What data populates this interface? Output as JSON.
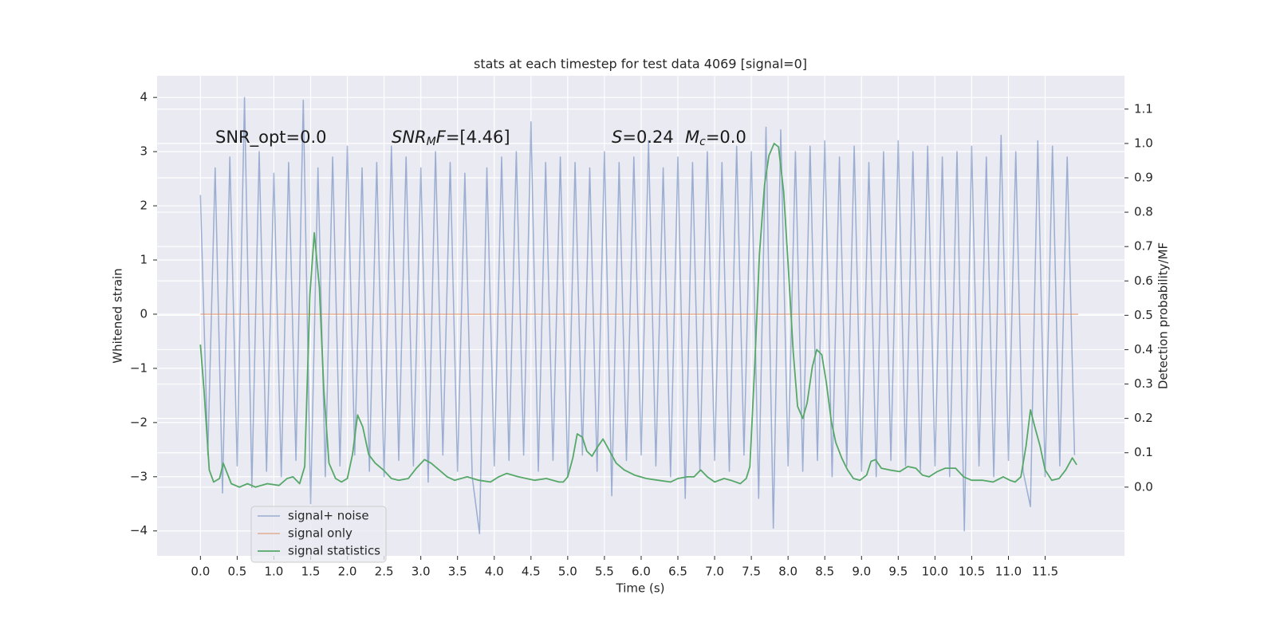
{
  "chart_data": {
    "type": "line",
    "title": "stats at each timestep for test data 4069 [signal=0]",
    "xlabel": "Time (s)",
    "ylabel": "Whitened strain",
    "y2label": "Detection probability/MF",
    "annotations": [
      [
        {
          "text": "SNR_opt=0.0",
          "style": "normal"
        }
      ],
      [
        {
          "text": "SNR",
          "style": "italic"
        },
        {
          "text": "M",
          "style": "sub"
        },
        {
          "text": "F",
          "style": "italic"
        },
        {
          "text": "=[4.46]",
          "style": "normal"
        }
      ],
      [
        {
          "text": "S",
          "style": "italic"
        },
        {
          "text": "=0.24",
          "style": "normal"
        }
      ],
      [
        {
          "text": "M",
          "style": "italic"
        },
        {
          "text": "c",
          "style": "sub"
        },
        {
          "text": "=0.0",
          "style": "normal"
        }
      ]
    ],
    "xlim": [
      -0.59,
      12.58
    ],
    "ylim": [
      -4.46,
      4.4
    ],
    "y2lim": [
      -0.2,
      1.197
    ],
    "xticks": [
      {
        "value": 0,
        "label": "0.0"
      },
      0.5,
      {
        "value": 1,
        "label": "1.0"
      },
      1.5,
      {
        "value": 2,
        "label": "2.0"
      },
      2.5,
      {
        "value": 3,
        "label": "3.0"
      },
      3.5,
      {
        "value": 4,
        "label": "4.0"
      },
      4.5,
      {
        "value": 5,
        "label": "5.0"
      },
      5.5,
      {
        "value": 6,
        "label": "6.0"
      },
      6.5,
      {
        "value": 7,
        "label": "7.0"
      },
      7.5,
      {
        "value": 8,
        "label": "8.0"
      },
      8.5,
      {
        "value": 9,
        "label": "9.0"
      },
      9.5,
      {
        "value": 10,
        "label": "10.0"
      },
      10.5,
      {
        "value": 11,
        "label": "11.0"
      },
      11.5
    ],
    "yticks": [
      {
        "value": -4,
        "label": "−4"
      },
      {
        "value": -3,
        "label": "−3"
      },
      {
        "value": -2,
        "label": "−2"
      },
      {
        "value": -1,
        "label": "−1"
      },
      0,
      1,
      2,
      3,
      4
    ],
    "y2ticks": [
      {
        "value": 0,
        "label": "0.0"
      },
      0.1,
      0.2,
      0.3,
      0.4,
      0.5,
      0.6,
      0.7,
      0.8,
      0.9,
      {
        "value": 1,
        "label": "1.0"
      },
      1.1
    ],
    "grid": true,
    "legend": "lower left",
    "series": [
      {
        "name": "signal+ noise",
        "color": "#4c72b0",
        "axis": "y",
        "x": [
          0,
          0.1,
          0.2,
          0.3,
          0.4,
          0.5,
          0.6,
          0.7,
          0.8,
          0.9,
          1,
          1.1,
          1.2,
          1.3,
          1.4,
          1.5,
          1.6,
          1.7,
          1.8,
          1.9,
          2,
          2.1,
          2.2,
          2.3,
          2.4,
          2.5,
          2.6,
          2.7,
          2.8,
          2.9,
          3,
          3.1,
          3.2,
          3.3,
          3.4,
          3.5,
          3.6,
          3.7,
          3.8,
          3.9,
          4,
          4.1,
          4.2,
          4.3,
          4.4,
          4.5,
          4.6,
          4.7,
          4.8,
          4.9,
          5,
          5.1,
          5.2,
          5.3,
          5.4,
          5.5,
          5.6,
          5.7,
          5.8,
          5.9,
          6,
          6.1,
          6.2,
          6.3,
          6.4,
          6.5,
          6.6,
          6.7,
          6.8,
          6.9,
          7,
          7.1,
          7.2,
          7.3,
          7.4,
          7.5,
          7.6,
          7.7,
          7.8,
          7.9,
          8,
          8.1,
          8.2,
          8.3,
          8.4,
          8.5,
          8.6,
          8.7,
          8.8,
          8.9,
          9,
          9.1,
          9.2,
          9.3,
          9.4,
          9.5,
          9.6,
          9.7,
          9.8,
          9.9,
          10,
          10.1,
          10.2,
          10.3,
          10.4,
          10.5,
          10.6,
          10.7,
          10.8,
          10.9,
          11,
          11.1,
          11.2,
          11.3,
          11.4,
          11.5,
          11.6,
          11.7,
          11.8,
          11.9
        ],
        "values": [
          2.2,
          -2.6,
          2.7,
          -3.3,
          2.9,
          -2.8,
          4.0,
          -3.2,
          3.0,
          -2.9,
          2.6,
          -3.0,
          2.8,
          -2.7,
          3.95,
          -3.5,
          2.7,
          -3.0,
          2.9,
          -2.8,
          3.1,
          -2.6,
          2.7,
          -2.9,
          2.8,
          -3.0,
          3.1,
          -2.7,
          2.9,
          -2.8,
          2.7,
          -3.1,
          3.0,
          -2.6,
          2.8,
          -2.9,
          2.6,
          -3.0,
          -4.05,
          2.7,
          -2.8,
          2.9,
          -2.7,
          3.0,
          -2.6,
          3.55,
          -2.9,
          2.8,
          -2.7,
          2.9,
          -3.0,
          2.8,
          -2.6,
          2.7,
          -2.9,
          3.0,
          -3.35,
          2.8,
          -2.7,
          2.9,
          -2.6,
          3.2,
          -2.8,
          2.7,
          -3.0,
          2.9,
          -3.4,
          2.8,
          -2.9,
          3.0,
          -2.7,
          2.8,
          -2.9,
          3.1,
          -2.6,
          3.0,
          -3.4,
          3.45,
          -3.95,
          3.4,
          -2.8,
          3.0,
          -2.9,
          3.1,
          -2.7,
          3.2,
          -3.0,
          2.9,
          -2.8,
          3.1,
          -2.9,
          2.8,
          -3.0,
          3.0,
          -2.7,
          3.2,
          -2.8,
          3.0,
          -2.9,
          3.1,
          -2.8,
          2.9,
          -3.0,
          3.0,
          -4.0,
          3.1,
          -2.8,
          2.9,
          -3.0,
          3.3,
          -2.7,
          3.0,
          -2.9,
          -3.55,
          3.2,
          -3.0,
          3.1,
          -2.8,
          2.9,
          -2.6
        ]
      },
      {
        "name": "signal only",
        "color": "#dd8452",
        "axis": "y",
        "x": [
          0,
          11.95
        ],
        "values": [
          0,
          0
        ]
      },
      {
        "name": "signal statistics",
        "color": "#55a868",
        "axis": "y2",
        "x": [
          0,
          0.05,
          0.12,
          0.18,
          0.26,
          0.31,
          0.42,
          0.53,
          0.64,
          0.75,
          0.91,
          1.07,
          1.18,
          1.26,
          1.35,
          1.42,
          1.49,
          1.55,
          1.62,
          1.68,
          1.75,
          1.84,
          1.92,
          2.0,
          2.07,
          2.14,
          2.21,
          2.29,
          2.38,
          2.49,
          2.6,
          2.7,
          2.83,
          2.94,
          3.05,
          3.14,
          3.25,
          3.36,
          3.46,
          3.63,
          3.79,
          3.95,
          4.06,
          4.17,
          4.33,
          4.55,
          4.71,
          4.88,
          4.94,
          5.0,
          5.07,
          5.13,
          5.2,
          5.26,
          5.33,
          5.4,
          5.48,
          5.57,
          5.66,
          5.77,
          5.91,
          6.07,
          6.23,
          6.4,
          6.5,
          6.63,
          6.72,
          6.81,
          6.9,
          7.0,
          7.13,
          7.22,
          7.35,
          7.43,
          7.48,
          7.55,
          7.61,
          7.68,
          7.74,
          7.81,
          7.87,
          7.94,
          8.0,
          8.07,
          8.13,
          8.2,
          8.26,
          8.33,
          8.39,
          8.46,
          8.52,
          8.59,
          8.65,
          8.73,
          8.81,
          8.89,
          8.98,
          9.07,
          9.13,
          9.19,
          9.27,
          9.38,
          9.52,
          9.63,
          9.74,
          9.83,
          9.92,
          10.03,
          10.14,
          10.28,
          10.39,
          10.5,
          10.65,
          10.79,
          10.93,
          11.02,
          11.09,
          11.17,
          11.24,
          11.3,
          11.36,
          11.43,
          11.5,
          11.59,
          11.69,
          11.78,
          11.87,
          11.93
        ],
        "values": [
          0.415,
          0.28,
          0.05,
          0.015,
          0.025,
          0.07,
          0.01,
          0.0,
          0.01,
          0.0,
          0.01,
          0.005,
          0.025,
          0.03,
          0.01,
          0.06,
          0.56,
          0.74,
          0.58,
          0.28,
          0.07,
          0.025,
          0.015,
          0.025,
          0.095,
          0.21,
          0.175,
          0.095,
          0.07,
          0.05,
          0.025,
          0.02,
          0.025,
          0.055,
          0.08,
          0.07,
          0.05,
          0.03,
          0.02,
          0.03,
          0.02,
          0.015,
          0.03,
          0.04,
          0.03,
          0.02,
          0.025,
          0.015,
          0.015,
          0.03,
          0.085,
          0.155,
          0.145,
          0.105,
          0.09,
          0.115,
          0.14,
          0.105,
          0.07,
          0.05,
          0.035,
          0.025,
          0.02,
          0.015,
          0.025,
          0.03,
          0.03,
          0.05,
          0.03,
          0.015,
          0.025,
          0.02,
          0.01,
          0.025,
          0.06,
          0.37,
          0.675,
          0.88,
          0.965,
          1.0,
          0.99,
          0.86,
          0.65,
          0.395,
          0.235,
          0.2,
          0.245,
          0.35,
          0.4,
          0.385,
          0.305,
          0.19,
          0.13,
          0.085,
          0.05,
          0.025,
          0.02,
          0.035,
          0.075,
          0.08,
          0.055,
          0.05,
          0.045,
          0.06,
          0.055,
          0.035,
          0.03,
          0.045,
          0.055,
          0.055,
          0.03,
          0.02,
          0.02,
          0.015,
          0.03,
          0.02,
          0.015,
          0.03,
          0.12,
          0.225,
          0.175,
          0.12,
          0.05,
          0.02,
          0.025,
          0.05,
          0.085,
          0.065
        ]
      }
    ]
  }
}
